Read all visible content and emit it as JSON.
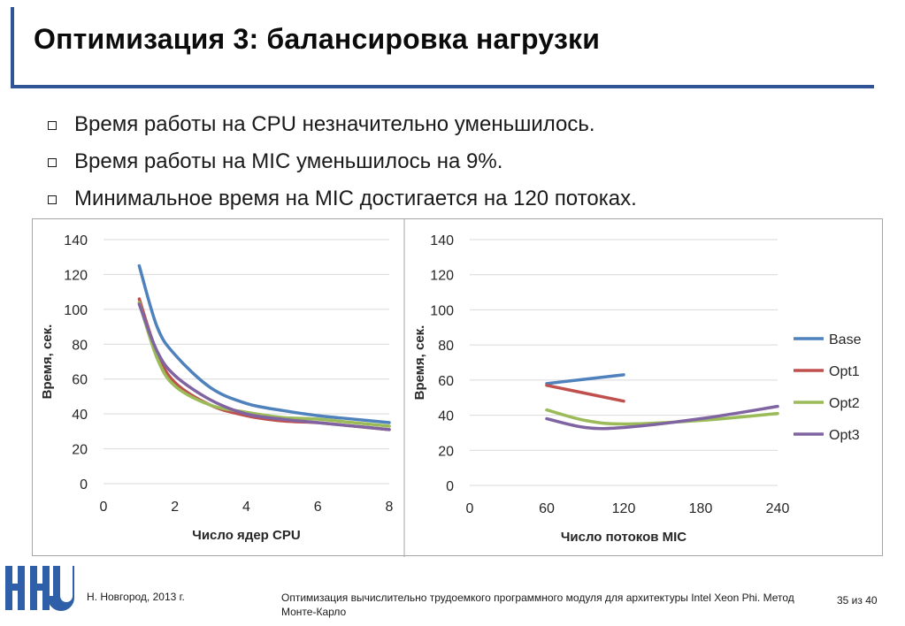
{
  "slide": {
    "title": "Оптимизация 3: балансировка нагрузки",
    "bullets": [
      "Время работы на CPU незначительно уменьшилось.",
      "Время работы на MIC уменьшилось на 9%.",
      "Минимальное время на MIC достигается на 120 потоках."
    ]
  },
  "footer": {
    "location": "Н. Новгород, 2013 г.",
    "course": "Оптимизация вычислительно трудоемкого программного модуля для архитектуры Intel Xeon Phi. Метод Монте-Карло",
    "page": "35 из 40"
  },
  "colors": {
    "accent": "#2f5597",
    "Base": "#4f81bd",
    "Opt1": "#c0504d",
    "Opt2": "#9bbb59",
    "Opt3": "#8064a2",
    "grid": "#d9d9d9"
  },
  "chart_data": [
    {
      "type": "line",
      "xlabel": "Число ядер CPU",
      "ylabel": "Время, сек.",
      "xlim": [
        0,
        8
      ],
      "ylim": [
        0,
        140
      ],
      "xticks": [
        0,
        2,
        4,
        6,
        8
      ],
      "yticks": [
        0,
        20,
        40,
        60,
        80,
        100,
        120,
        140
      ],
      "grid": "horizontal",
      "legend": "none",
      "series": [
        {
          "name": "Base",
          "x": [
            1,
            1.5,
            2,
            3,
            4,
            5,
            6,
            7,
            8
          ],
          "y": [
            125,
            90,
            74,
            55,
            46,
            42,
            39,
            37,
            35
          ]
        },
        {
          "name": "Opt1",
          "x": [
            1,
            1.5,
            2,
            3,
            4,
            5,
            6,
            7,
            8
          ],
          "y": [
            106,
            75,
            58,
            45,
            39,
            36,
            35,
            33,
            31
          ]
        },
        {
          "name": "Opt2",
          "x": [
            1,
            1.5,
            2,
            3,
            4,
            5,
            6,
            7,
            8
          ],
          "y": [
            104,
            72,
            56,
            45,
            41,
            38,
            37,
            35,
            33
          ]
        },
        {
          "name": "Opt3",
          "x": [
            1,
            1.5,
            2,
            3,
            4,
            5,
            6,
            7,
            8
          ],
          "y": [
            103,
            76,
            62,
            48,
            40,
            37,
            35,
            33,
            31
          ]
        }
      ]
    },
    {
      "type": "line",
      "xlabel": "Число потоков MIC",
      "ylabel": "Время, сек.",
      "xlim": [
        0,
        240
      ],
      "ylim": [
        0,
        140
      ],
      "xticks": [
        0,
        60,
        120,
        180,
        240
      ],
      "yticks": [
        0,
        20,
        40,
        60,
        80,
        100,
        120,
        140
      ],
      "grid": "horizontal",
      "legend": "right",
      "series": [
        {
          "name": "Base",
          "x": [
            60,
            120
          ],
          "y": [
            58,
            63
          ]
        },
        {
          "name": "Opt1",
          "x": [
            60,
            120
          ],
          "y": [
            57,
            48
          ]
        },
        {
          "name": "Opt2",
          "x": [
            60,
            90,
            120,
            180,
            240
          ],
          "y": [
            43,
            37,
            35,
            37,
            41
          ]
        },
        {
          "name": "Opt3",
          "x": [
            60,
            90,
            120,
            180,
            240
          ],
          "y": [
            38,
            33,
            33,
            38,
            45
          ]
        }
      ]
    }
  ]
}
